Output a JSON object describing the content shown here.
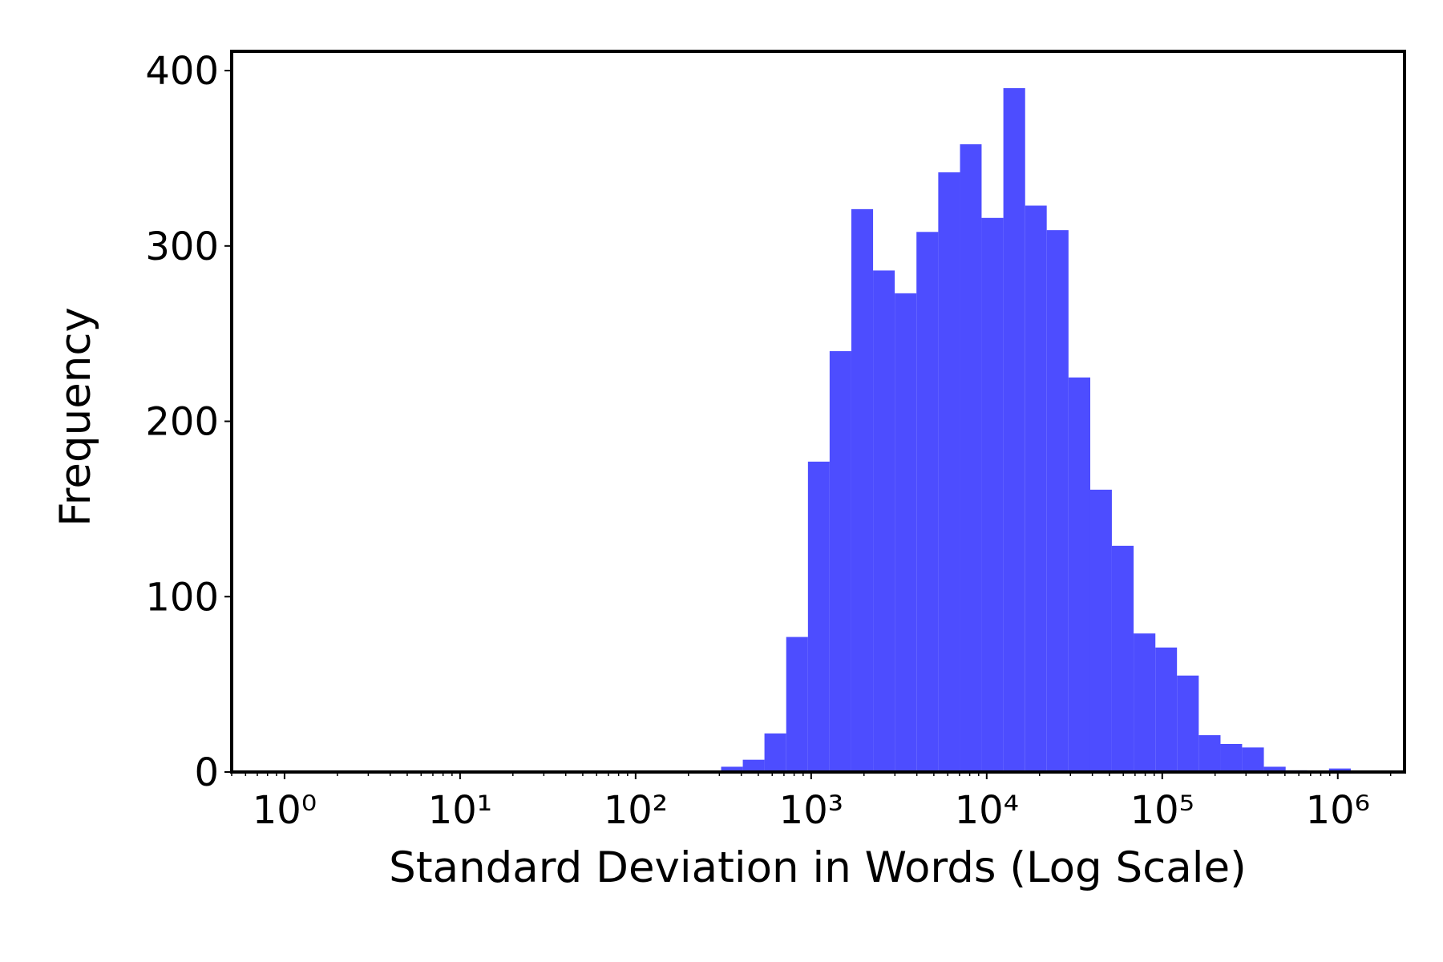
{
  "chart_data": {
    "type": "histogram",
    "xlabel": "Standard Deviation in Words (Log Scale)",
    "ylabel": "Frequency",
    "xscale": "log",
    "color": "#4d4dff",
    "bins": [
      307,
      408,
      542,
      721,
      959,
      1274,
      1694,
      2253,
      2994,
      3981,
      5297,
      7047,
      9354,
      12445,
      16558,
      21979,
      29242,
      38905,
      51642,
      68707,
      91411,
      121339,
      161436,
      214783,
      285102,
      379315,
      504661,
      669885,
      891251,
      1185769
    ],
    "values": [
      3,
      7,
      22,
      77,
      177,
      240,
      321,
      286,
      273,
      308,
      342,
      358,
      316,
      390,
      323,
      309,
      225,
      161,
      129,
      79,
      71,
      55,
      21,
      16,
      14,
      3,
      1,
      0,
      2
    ],
    "xlim": [
      0.5,
      2400000
    ],
    "ylim": [
      0,
      411
    ],
    "xticks": [
      {
        "value": 1,
        "label": "10⁰"
      },
      {
        "value": 10,
        "label": "10¹"
      },
      {
        "value": 100,
        "label": "10²"
      },
      {
        "value": 1000,
        "label": "10³"
      },
      {
        "value": 10000,
        "label": "10⁴"
      },
      {
        "value": 100000,
        "label": "10⁵"
      },
      {
        "value": 1000000,
        "label": "10⁶"
      }
    ],
    "yticks": [
      0,
      100,
      200,
      300,
      400
    ]
  }
}
